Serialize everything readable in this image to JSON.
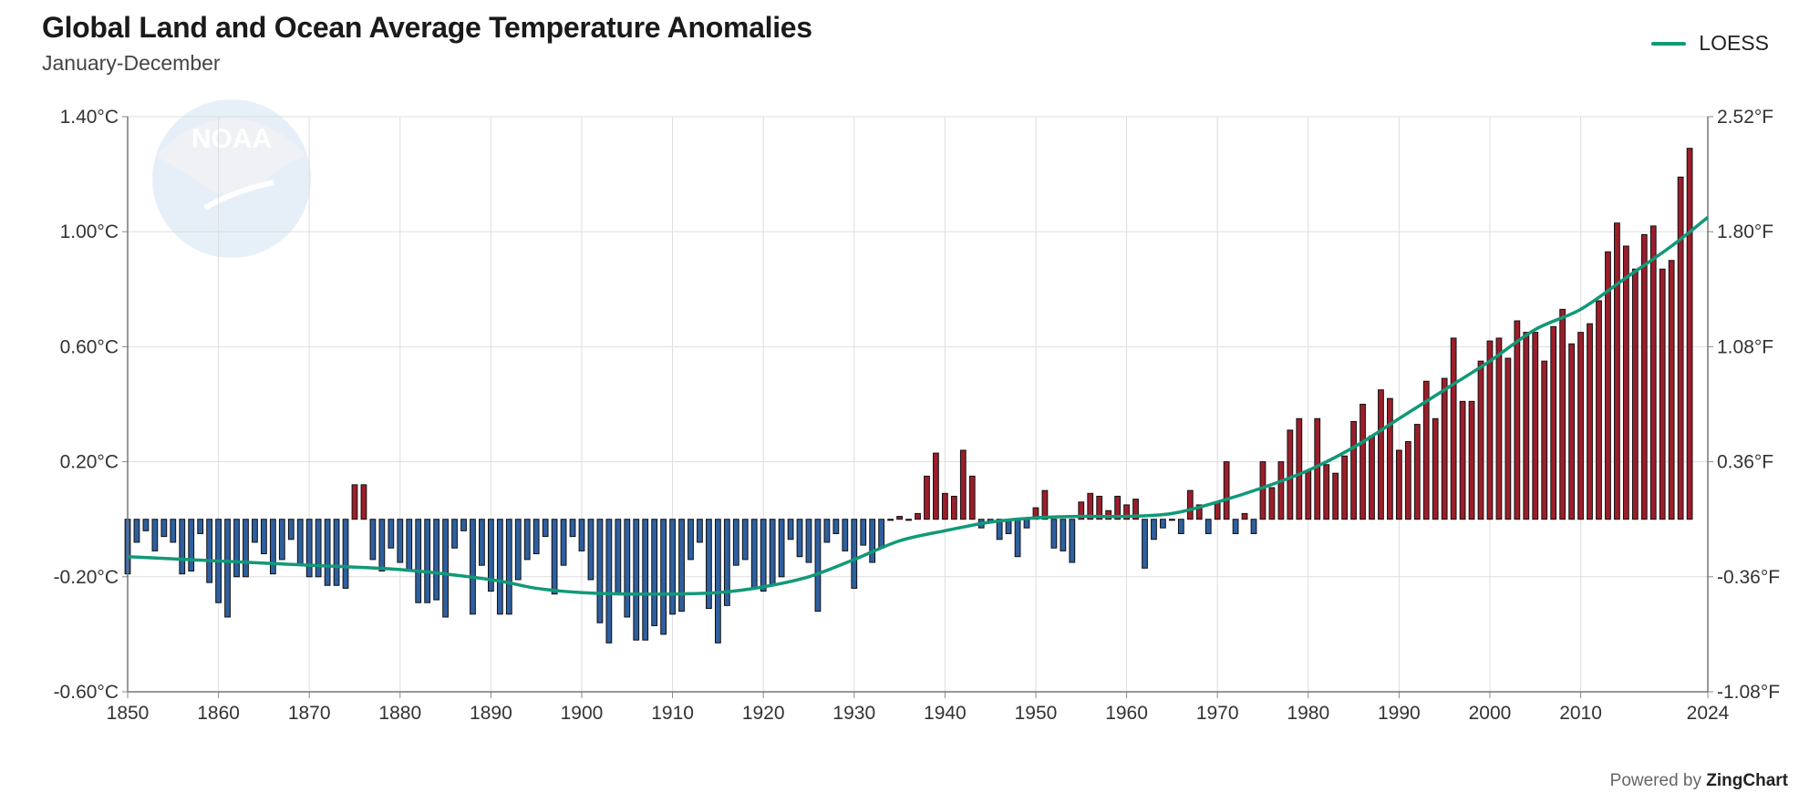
{
  "header": {
    "title": "Global Land and Ocean Average Temperature Anomalies",
    "subtitle": "January-December"
  },
  "legend": {
    "label": "LOESS",
    "color": "#119977"
  },
  "footer": {
    "powered_text": "Powered by",
    "brand": "ZingChart"
  },
  "watermark": {
    "text": "NOAA"
  },
  "colors": {
    "positive": "#9b1e2b",
    "negative": "#2e5f9e",
    "bar_outline": "#111111",
    "loess": "#119977",
    "grid": "#dddddd"
  },
  "chart_data": {
    "type": "bar",
    "title": "Global Land and Ocean Average Temperature Anomalies",
    "subtitle": "January-December",
    "x_start": 1850,
    "x_end": 2024,
    "ylim": [
      -0.6,
      1.4
    ],
    "yticks": [
      {
        "v": -0.6,
        "c": "-0.60°C",
        "f": "-1.08°F"
      },
      {
        "v": -0.2,
        "c": "-0.20°C",
        "f": "-0.36°F"
      },
      {
        "v": 0.2,
        "c": "0.20°C",
        "f": "0.36°F"
      },
      {
        "v": 0.6,
        "c": "0.60°C",
        "f": "1.08°F"
      },
      {
        "v": 1.0,
        "c": "1.00°C",
        "f": "1.80°F"
      },
      {
        "v": 1.4,
        "c": "1.40°C",
        "f": "2.52°F"
      }
    ],
    "xticks": [
      "1850",
      "1860",
      "1870",
      "1880",
      "1890",
      "1900",
      "1910",
      "1920",
      "1930",
      "1940",
      "1950",
      "1960",
      "1970",
      "1980",
      "1990",
      "2000",
      "2010",
      "2024"
    ],
    "grid": true,
    "legend_position": "top-right",
    "series": [
      {
        "name": "Anomaly",
        "type": "bar",
        "values": [
          -0.19,
          -0.08,
          -0.04,
          -0.11,
          -0.06,
          -0.08,
          -0.19,
          -0.18,
          -0.05,
          -0.22,
          -0.29,
          -0.34,
          -0.2,
          -0.2,
          -0.08,
          -0.12,
          -0.19,
          -0.14,
          -0.07,
          -0.16,
          -0.2,
          -0.2,
          -0.23,
          -0.23,
          -0.24,
          0.12,
          0.12,
          -0.14,
          -0.18,
          -0.1,
          -0.15,
          -0.18,
          -0.29,
          -0.29,
          -0.28,
          -0.34,
          -0.1,
          -0.04,
          -0.33,
          -0.16,
          -0.25,
          -0.33,
          -0.33,
          -0.21,
          -0.14,
          -0.12,
          -0.06,
          -0.26,
          -0.16,
          -0.06,
          -0.11,
          -0.21,
          -0.36,
          -0.43,
          -0.26,
          -0.34,
          -0.42,
          -0.42,
          -0.37,
          -0.4,
          -0.33,
          -0.32,
          -0.14,
          -0.08,
          -0.31,
          -0.43,
          -0.3,
          -0.16,
          -0.14,
          -0.24,
          -0.25,
          -0.23,
          -0.2,
          -0.07,
          -0.13,
          -0.15,
          -0.32,
          -0.08,
          -0.05,
          -0.11,
          -0.24,
          -0.09,
          -0.15,
          -0.1,
          0.0,
          0.01,
          0.0,
          0.02,
          0.15,
          0.23,
          0.09,
          0.08,
          0.24,
          0.15,
          -0.03,
          -0.01,
          -0.07,
          -0.05,
          -0.13,
          -0.03,
          0.04,
          0.1,
          -0.1,
          -0.11,
          -0.15,
          0.06,
          0.09,
          0.08,
          0.03,
          0.08,
          0.05,
          0.07,
          -0.17,
          -0.07,
          -0.03,
          0.0,
          -0.05,
          0.1,
          0.05,
          -0.05,
          0.06,
          0.2,
          -0.05,
          0.02,
          -0.05,
          0.2,
          0.11,
          0.2,
          0.31,
          0.35,
          0.17,
          0.35,
          0.19,
          0.16,
          0.22,
          0.34,
          0.4,
          0.29,
          0.45,
          0.42,
          0.24,
          0.27,
          0.33,
          0.48,
          0.35,
          0.49,
          0.63,
          0.41,
          0.41,
          0.55,
          0.62,
          0.63,
          0.56,
          0.69,
          0.65,
          0.65,
          0.55,
          0.67,
          0.73,
          0.61,
          0.65,
          0.68,
          0.76,
          0.93,
          1.03,
          0.95,
          0.87,
          0.99,
          1.02,
          0.87,
          0.9,
          1.19,
          1.29
        ]
      },
      {
        "name": "LOESS",
        "type": "line",
        "points": [
          [
            1850,
            -0.13
          ],
          [
            1860,
            -0.145
          ],
          [
            1870,
            -0.16
          ],
          [
            1880,
            -0.175
          ],
          [
            1890,
            -0.21
          ],
          [
            1895,
            -0.24
          ],
          [
            1900,
            -0.255
          ],
          [
            1905,
            -0.26
          ],
          [
            1910,
            -0.26
          ],
          [
            1915,
            -0.255
          ],
          [
            1920,
            -0.235
          ],
          [
            1925,
            -0.2
          ],
          [
            1930,
            -0.14
          ],
          [
            1935,
            -0.075
          ],
          [
            1940,
            -0.04
          ],
          [
            1945,
            -0.01
          ],
          [
            1950,
            0.005
          ],
          [
            1955,
            0.01
          ],
          [
            1960,
            0.01
          ],
          [
            1965,
            0.02
          ],
          [
            1970,
            0.06
          ],
          [
            1975,
            0.11
          ],
          [
            1980,
            0.17
          ],
          [
            1985,
            0.25
          ],
          [
            1990,
            0.35
          ],
          [
            1995,
            0.45
          ],
          [
            2000,
            0.55
          ],
          [
            2005,
            0.66
          ],
          [
            2010,
            0.73
          ],
          [
            2015,
            0.84
          ],
          [
            2020,
            0.95
          ],
          [
            2024,
            1.05
          ]
        ]
      }
    ]
  }
}
